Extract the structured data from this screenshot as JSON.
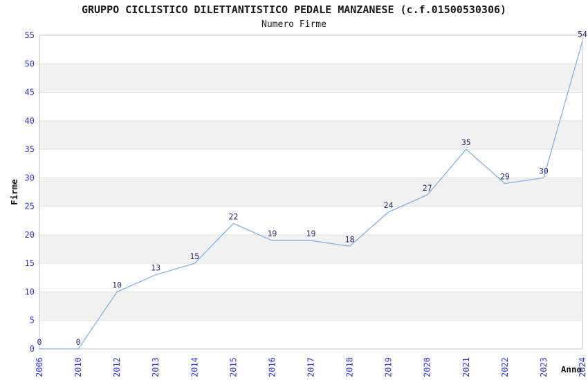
{
  "chart_data": {
    "type": "line",
    "title": "GRUPPO CICLISTICO DILETTANTISTICO PEDALE MANZANESE (c.f.01500530306)",
    "subtitle": "Numero Firme",
    "categories": [
      "2006",
      "2010",
      "2012",
      "2013",
      "2014",
      "2015",
      "2016",
      "2017",
      "2018",
      "2019",
      "2020",
      "2021",
      "2022",
      "2023",
      "2024"
    ],
    "values": [
      0,
      0,
      10,
      13,
      15,
      22,
      19,
      19,
      18,
      24,
      27,
      35,
      29,
      30,
      54
    ],
    "data_labels": [
      "0",
      "0",
      "10",
      "13",
      "15",
      "22",
      "19",
      "19",
      "18",
      "24",
      "27",
      "35",
      "29",
      "30",
      "54"
    ],
    "xlabel": "Anno",
    "ylabel": "Firme",
    "ylim": [
      0,
      55
    ],
    "yticks": [
      0,
      5,
      10,
      15,
      20,
      25,
      30,
      35,
      40,
      45,
      50,
      55
    ],
    "grid": "horizontal-bands-alternating",
    "legend": "none",
    "colors": {
      "line": "#7fb2e8",
      "data_label": "#28286e",
      "tick_label": "#3333e6",
      "band": "#f1f1f1",
      "gridline": "#e0e0e0",
      "border": "#c2c2c2",
      "text": "#1a1a1a",
      "background": "#ffffff"
    }
  }
}
